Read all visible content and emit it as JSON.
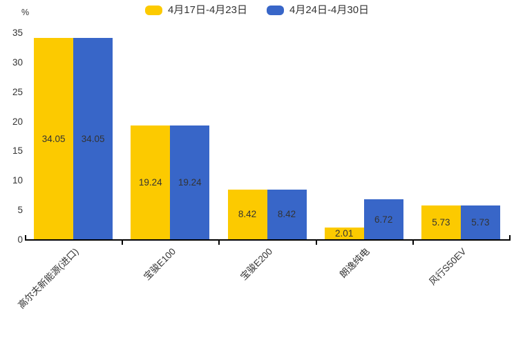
{
  "chart_data": {
    "type": "bar",
    "title": "",
    "unit_label": "%",
    "categories": [
      "高尔夫新能源(进口)",
      "宝骏E100",
      "宝骏E200",
      "朗逸纯电",
      "风行S50EV"
    ],
    "series": [
      {
        "name": "4月17日-4月23日",
        "color": "#FCCA00",
        "values": [
          34.05,
          19.24,
          8.42,
          2.01,
          5.73
        ]
      },
      {
        "name": "4月24日-4月30日",
        "color": "#3866C8",
        "values": [
          34.05,
          19.24,
          8.42,
          6.72,
          5.73
        ]
      }
    ],
    "y_axis": {
      "min": 0,
      "max": 35,
      "tick_step": 5,
      "ticks": [
        0,
        5,
        10,
        15,
        20,
        25,
        30,
        35
      ]
    },
    "legend_position": "top-center",
    "grid": false,
    "value_labels": "inside-center",
    "x_label_rotation": -45,
    "colors": {
      "axis": "#000000",
      "text": "#333333",
      "background": "#ffffff"
    }
  }
}
